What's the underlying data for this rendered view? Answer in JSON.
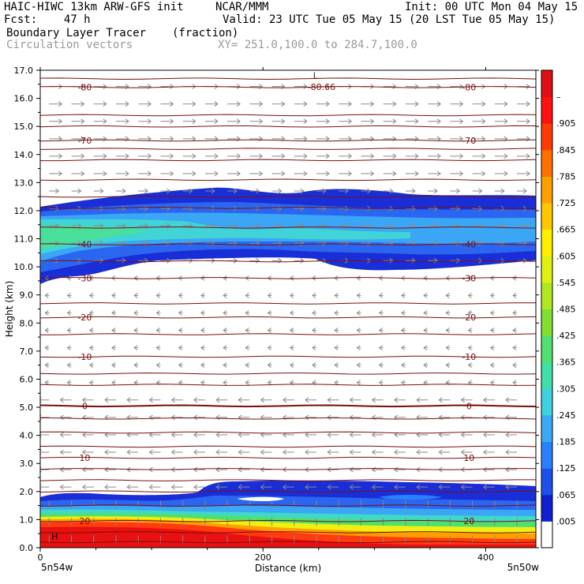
{
  "header": {
    "model": "HAIC-HIWC 13km ARW-GFS init",
    "org": "NCAR/MMM",
    "init": "Init: 00 UTC Mon 04 May 15",
    "fcst": "Fcst:    47 h",
    "valid": "Valid: 23 UTC Tue 05 May 15 (20 LST Tue 05 May 15)",
    "field": "Boundary Layer Tracer",
    "units": "(fraction)",
    "vectors": "Circulation vectors",
    "xy": "XY= 251.0,100.0 to 284.7,100.0"
  },
  "chart_data": {
    "type": "heatmap",
    "xlabel": "Distance (km)",
    "ylabel": "Height (km)",
    "xlim": [
      0,
      445
    ],
    "ylim": [
      0,
      17
    ],
    "xticks": [
      "0",
      "200",
      "400"
    ],
    "yticks": [
      "0.0",
      "1.0",
      "2.0",
      "3.0",
      "4.0",
      "5.0",
      "6.0",
      "7.0",
      "8.0",
      "9.0",
      "10.0",
      "11.0",
      "12.0",
      "13.0",
      "14.0",
      "15.0",
      "16.0",
      "17.0"
    ],
    "x_start_label": "5n54w",
    "x_end_label": "5n50w",
    "colorbar": {
      "labels": [
        ".005",
        ".065",
        ".125",
        ".185",
        ".245",
        ".305",
        ".365",
        ".425",
        ".485",
        ".545",
        ".605",
        ".665",
        ".725",
        ".785",
        ".845",
        ".905",
        "–"
      ],
      "colors": [
        "#ffffff",
        "#1020d0",
        "#1e50ee",
        "#2a80ff",
        "#3aaaf5",
        "#40d0e0",
        "#40e0a8",
        "#50e070",
        "#80e030",
        "#b0e820",
        "#e0f010",
        "#fff000",
        "#ffc800",
        "#ffa000",
        "#ff7000",
        "#ff3c00",
        "#ff1010",
        "#e01010"
      ]
    },
    "temperature_contours": [
      {
        "label": "-80",
        "height": 16.4
      },
      {
        "label": "-70",
        "height": 14.5
      },
      {
        "label": "-40",
        "height": 10.8
      },
      {
        "label": "-30",
        "height": 9.6
      },
      {
        "label": "-20",
        "height": 8.2
      },
      {
        "label": "-10",
        "height": 6.8
      },
      {
        "label": "0",
        "height": 5.05
      },
      {
        "label": "10",
        "height": 3.2
      },
      {
        "label": "20",
        "height": 0.95
      }
    ],
    "annotations": [
      "L",
      "-80.66",
      "H"
    ]
  }
}
